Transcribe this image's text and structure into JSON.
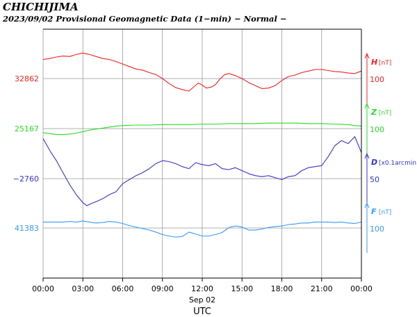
{
  "header": {
    "station": "CHICHIJIMA",
    "subtitle": "2023/09/02  Provisional Geomagnetic Data (1−min)  − Normal −"
  },
  "chart_data": {
    "type": "line",
    "x_ticks": [
      "00:00",
      "03:00",
      "06:00",
      "09:00",
      "12:00",
      "15:00",
      "18:00",
      "21:00",
      "00:00"
    ],
    "x_date_label": "Sep 02",
    "xlabel": "UTC",
    "x_range_hours": [
      0,
      24
    ],
    "grid": true,
    "series": [
      {
        "name": "H",
        "unit": "[nT]",
        "color": "#ee2222",
        "base_label": "32862",
        "scale_label": "100",
        "offset_units": 0,
        "scale_span": 100,
        "x": [
          0,
          0.5,
          1,
          1.5,
          2,
          2.5,
          3,
          3.5,
          4,
          4.5,
          5,
          5.5,
          6,
          6.5,
          7,
          7.5,
          8,
          8.5,
          9,
          9.5,
          10,
          10.5,
          11,
          11.3,
          11.7,
          12,
          12.3,
          12.7,
          13,
          13.3,
          13.7,
          14,
          14.5,
          15,
          15.5,
          16,
          16.5,
          17,
          17.5,
          18,
          18.5,
          19,
          19.5,
          20,
          20.5,
          21,
          21.5,
          22,
          22.5,
          23,
          23.5,
          24
        ],
        "y": [
          38,
          40,
          43,
          45,
          44,
          48,
          51,
          48,
          44,
          40,
          38,
          34,
          29,
          24,
          19,
          17,
          12,
          8,
          0,
          -10,
          -18,
          -22,
          -25,
          -18,
          -9,
          -13,
          -19,
          -17,
          -12,
          -2,
          8,
          10,
          6,
          0,
          -8,
          -14,
          -20,
          -19,
          -14,
          -4,
          4,
          7,
          12,
          15,
          18,
          18,
          16,
          14,
          13,
          11,
          10,
          15
        ]
      },
      {
        "name": "Z",
        "unit": "[nT]",
        "color": "#22dd22",
        "base_label": "25167",
        "scale_label": "100",
        "offset_units": 0,
        "scale_span": 100,
        "x": [
          0,
          0.5,
          1,
          1.5,
          2,
          2.5,
          3,
          3.5,
          4,
          4.5,
          5,
          5.5,
          6,
          7,
          8,
          9,
          10,
          11,
          12,
          13,
          14,
          15,
          16,
          17,
          18,
          19,
          20,
          21,
          22,
          23,
          23.5,
          24
        ],
        "y": [
          -8,
          -10,
          -12,
          -12,
          -11,
          -9,
          -6,
          -3,
          -1,
          1,
          3,
          5,
          6,
          7,
          7,
          8,
          8,
          8,
          9,
          9,
          10,
          10,
          10,
          11,
          11,
          11,
          10,
          10,
          9,
          8,
          6,
          5
        ]
      },
      {
        "name": "D",
        "unit": "[x0.1arcmin]",
        "color": "#3333cc",
        "base_label": "−2760",
        "scale_label": "50",
        "offset_units": 0,
        "scale_span": 50,
        "x": [
          0,
          0.3,
          0.6,
          1,
          1.5,
          2,
          2.5,
          3,
          3.3,
          3.6,
          4,
          4.5,
          5,
          5.5,
          6,
          6.5,
          7,
          7.5,
          8,
          8.5,
          9,
          9.5,
          10,
          10.5,
          11,
          11.5,
          12,
          12.5,
          13,
          13.5,
          14,
          14.5,
          15,
          15.5,
          16,
          16.5,
          17,
          17.5,
          18,
          18.5,
          19,
          19.5,
          20,
          20.5,
          21,
          21.5,
          22,
          22.5,
          23,
          23.5,
          24
        ],
        "y": [
          40,
          33,
          26,
          18,
          6,
          -6,
          -16,
          -24,
          -27,
          -25,
          -23,
          -20,
          -16,
          -13,
          -5,
          -1,
          3,
          6,
          10,
          15,
          18,
          17,
          15,
          12,
          10,
          16,
          14,
          13,
          15,
          10,
          9,
          11,
          8,
          5,
          3,
          2,
          3,
          1,
          -1,
          2,
          3,
          8,
          11,
          12,
          13,
          22,
          33,
          38,
          35,
          42,
          26
        ]
      },
      {
        "name": "F",
        "unit": "[nT]",
        "color": "#3399ff",
        "base_label": "41383",
        "scale_label": "100",
        "offset_units": 0,
        "scale_span": 100,
        "x": [
          0,
          0.5,
          1,
          1.5,
          2,
          2.5,
          3,
          3.5,
          4,
          4.5,
          5,
          5.5,
          6,
          6.5,
          7,
          7.5,
          8,
          8.5,
          9,
          9.5,
          10,
          10.5,
          11,
          11.5,
          12,
          12.5,
          13,
          13.5,
          14,
          14.5,
          15,
          15.5,
          16,
          16.5,
          17,
          17.5,
          18,
          18.5,
          19,
          19.5,
          20,
          20.5,
          21,
          21.5,
          22,
          22.5,
          23,
          23.5,
          24
        ],
        "y": [
          12,
          12,
          12,
          12,
          13,
          12,
          14,
          12,
          10,
          11,
          13,
          12,
          9,
          5,
          2,
          -1,
          -4,
          -8,
          -13,
          -16,
          -18,
          -17,
          -8,
          -12,
          -16,
          -16,
          -13,
          -9,
          1,
          4,
          2,
          -4,
          -4,
          -2,
          1,
          3,
          4,
          7,
          8,
          10,
          10,
          12,
          12,
          12,
          11,
          12,
          10,
          9,
          12
        ]
      }
    ]
  }
}
